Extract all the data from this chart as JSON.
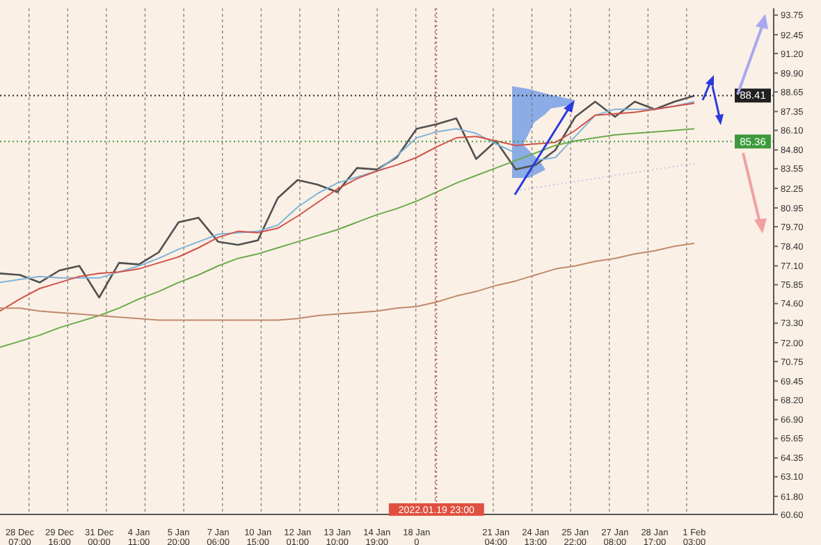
{
  "chart_data": {
    "type": "line",
    "grid": "x",
    "categories": [
      null,
      "28 Dec 07:00",
      null,
      "29 Dec 16:00",
      null,
      "31 Dec 00:00",
      null,
      "4 Jan 11:00",
      null,
      "5 Jan 20:00",
      null,
      "7 Jan 06:00",
      null,
      "10 Jan 15:00",
      null,
      "12 Jan 01:00",
      null,
      "13 Jan 10:00",
      null,
      "14 Jan 19:00",
      null,
      "18 Jan 0",
      "2022.01.19 23:00",
      null,
      null,
      "21 Jan 04:00",
      null,
      "24 Jan 13:00",
      null,
      "25 Jan 22:00",
      null,
      "27 Jan 08:00",
      null,
      "28 Jan 17:00",
      null,
      "1 Feb 03:00",
      null,
      null,
      null,
      null
    ],
    "ylim": [
      60.6,
      94.2
    ],
    "yticks": [
      {
        "value": 60.6,
        "label": "60.60"
      },
      {
        "value": 61.8,
        "label": "61.80"
      },
      {
        "value": 63.1,
        "label": "63.10"
      },
      {
        "value": 64.35,
        "label": "64.35"
      },
      {
        "value": 65.65,
        "label": "65.65"
      },
      {
        "value": 66.9,
        "label": "66.90"
      },
      {
        "value": 68.2,
        "label": "68.20"
      },
      {
        "value": 69.45,
        "label": "69.45"
      },
      {
        "value": 70.75,
        "label": "70.75"
      },
      {
        "value": 72.0,
        "label": "72.00"
      },
      {
        "value": 73.3,
        "label": "73.30"
      },
      {
        "value": 74.6,
        "label": "74.60"
      },
      {
        "value": 75.85,
        "label": "75.85"
      },
      {
        "value": 77.1,
        "label": "77.10"
      },
      {
        "value": 78.4,
        "label": "78.40"
      },
      {
        "value": 79.7,
        "label": "79.70"
      },
      {
        "value": 80.95,
        "label": "80.95"
      },
      {
        "value": 82.25,
        "label": "82.25"
      },
      {
        "value": 83.55,
        "label": "83.55"
      },
      {
        "value": 84.8,
        "label": "84.80"
      },
      {
        "value": 86.1,
        "label": "86.10"
      },
      {
        "value": 87.35,
        "label": "87.35"
      },
      {
        "value": 88.65,
        "label": "88.65"
      },
      {
        "value": 89.9,
        "label": "89.90"
      },
      {
        "value": 91.2,
        "label": "91.20"
      },
      {
        "value": 92.45,
        "label": "92.45"
      },
      {
        "value": 93.75,
        "label": "93.75"
      }
    ],
    "ref_lines": [
      {
        "axis": "y",
        "value": 85.36,
        "label": "85.36",
        "color": "#3c9a3c",
        "line_style": "dotted"
      },
      {
        "axis": "y",
        "value": 88.41,
        "label": "88.41",
        "color": "#202020",
        "line_style": "dotted"
      },
      {
        "axis": "x",
        "value": "2022.01.19 23:00",
        "color": "#e05040",
        "line_style": "dotted"
      }
    ],
    "series": [
      {
        "color": "#505050",
        "values": [
          76.6,
          76.5,
          76.0,
          76.8,
          77.1,
          75.0,
          77.3,
          77.2,
          78.0,
          80.0,
          80.3,
          78.7,
          78.5,
          78.8,
          81.6,
          82.8,
          82.5,
          82.0,
          83.6,
          83.5,
          84.3,
          86.2,
          86.5,
          86.9,
          84.2,
          85.4,
          83.5,
          83.8,
          84.8,
          87.0,
          88.0,
          87.0,
          88.0,
          87.5,
          88.0,
          88.4,
          null,
          null,
          null,
          null
        ]
      },
      {
        "color": "#7fb3d8",
        "values": [
          76.0,
          76.2,
          76.4,
          76.3,
          76.3,
          76.3,
          76.7,
          77.1,
          77.6,
          78.2,
          78.7,
          79.2,
          79.3,
          79.4,
          79.8,
          81.0,
          81.9,
          82.6,
          83.0,
          83.4,
          84.4,
          85.6,
          86.0,
          86.2,
          85.9,
          85.2,
          84.6,
          84.1,
          84.3,
          85.7,
          87.1,
          87.5,
          87.5,
          87.5,
          87.7,
          88.0,
          null,
          null,
          null,
          null
        ]
      },
      {
        "color": "#d0524a",
        "values": [
          74.1,
          74.9,
          75.6,
          76.0,
          76.4,
          76.6,
          76.7,
          76.9,
          77.3,
          77.7,
          78.3,
          79.0,
          79.4,
          79.3,
          79.6,
          80.4,
          81.3,
          82.2,
          82.9,
          83.4,
          83.8,
          84.3,
          85.0,
          85.6,
          85.7,
          85.4,
          85.1,
          85.2,
          85.3,
          86.1,
          87.1,
          87.2,
          87.3,
          87.5,
          87.7,
          87.9,
          null,
          null,
          null,
          null
        ]
      },
      {
        "color": "#6aaa4a",
        "values": [
          71.7,
          72.1,
          72.5,
          73.0,
          73.4,
          73.8,
          74.3,
          74.9,
          75.4,
          76.0,
          76.5,
          77.1,
          77.6,
          77.9,
          78.3,
          78.7,
          79.1,
          79.5,
          80.0,
          80.5,
          80.9,
          81.4,
          82.0,
          82.6,
          83.1,
          83.6,
          84.1,
          84.6,
          85.1,
          85.4,
          85.6,
          85.8,
          85.9,
          86.0,
          86.1,
          86.2,
          null,
          null,
          null,
          null
        ]
      },
      {
        "color": "#c08a6a",
        "values": [
          74.3,
          74.3,
          74.1,
          74.0,
          73.9,
          73.8,
          73.7,
          73.6,
          73.5,
          73.5,
          73.5,
          73.5,
          73.5,
          73.5,
          73.5,
          73.6,
          73.8,
          73.9,
          74.0,
          74.1,
          74.3,
          74.4,
          74.7,
          75.1,
          75.4,
          75.8,
          76.1,
          76.5,
          76.9,
          77.1,
          77.4,
          77.6,
          77.9,
          78.1,
          78.4,
          78.6,
          null,
          null,
          null,
          null
        ]
      },
      {
        "color": "#c8c8e0",
        "line_style": "dotted",
        "values": [
          null,
          null,
          null,
          null,
          null,
          null,
          null,
          null,
          null,
          null,
          null,
          null,
          null,
          null,
          null,
          null,
          null,
          null,
          null,
          null,
          null,
          null,
          null,
          null,
          null,
          null,
          82.1,
          82.3,
          82.5,
          82.7,
          82.9,
          83.1,
          83.3,
          83.5,
          83.7,
          83.9,
          null,
          null,
          null,
          null
        ]
      }
    ]
  }
}
